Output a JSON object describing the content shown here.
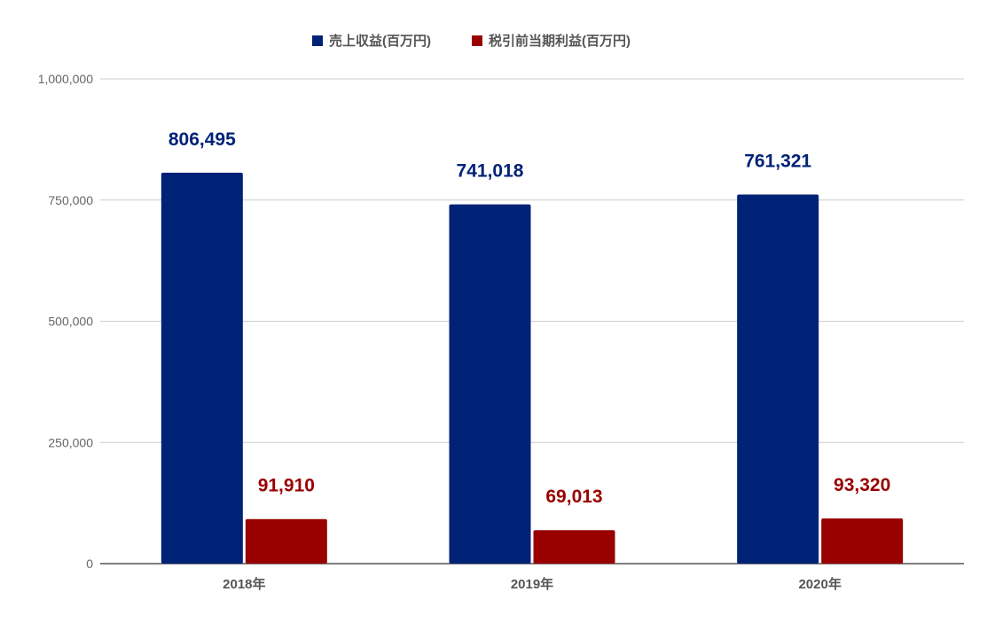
{
  "chart_data": {
    "type": "bar",
    "categories": [
      "2018年",
      "2019年",
      "2020年"
    ],
    "series": [
      {
        "name": "売上収益(百万円)",
        "values": [
          806495,
          741018,
          761321
        ],
        "labels": [
          "806,495",
          "741,018",
          "761,321"
        ],
        "color": "#002277"
      },
      {
        "name": "税引前当期利益(百万円)",
        "values": [
          91910,
          69013,
          93320
        ],
        "labels": [
          "91,910",
          "69,013",
          "93,320"
        ],
        "color": "#990000"
      }
    ],
    "y_ticks": [
      0,
      250000,
      500000,
      750000,
      1000000
    ],
    "y_tick_labels": [
      "0",
      "250,000",
      "500,000",
      "750,000",
      "1,000,000"
    ],
    "ylim": [
      0,
      1000000
    ],
    "title": "",
    "xlabel": "",
    "ylabel": "",
    "grid": true,
    "legend_position": "top-center"
  }
}
